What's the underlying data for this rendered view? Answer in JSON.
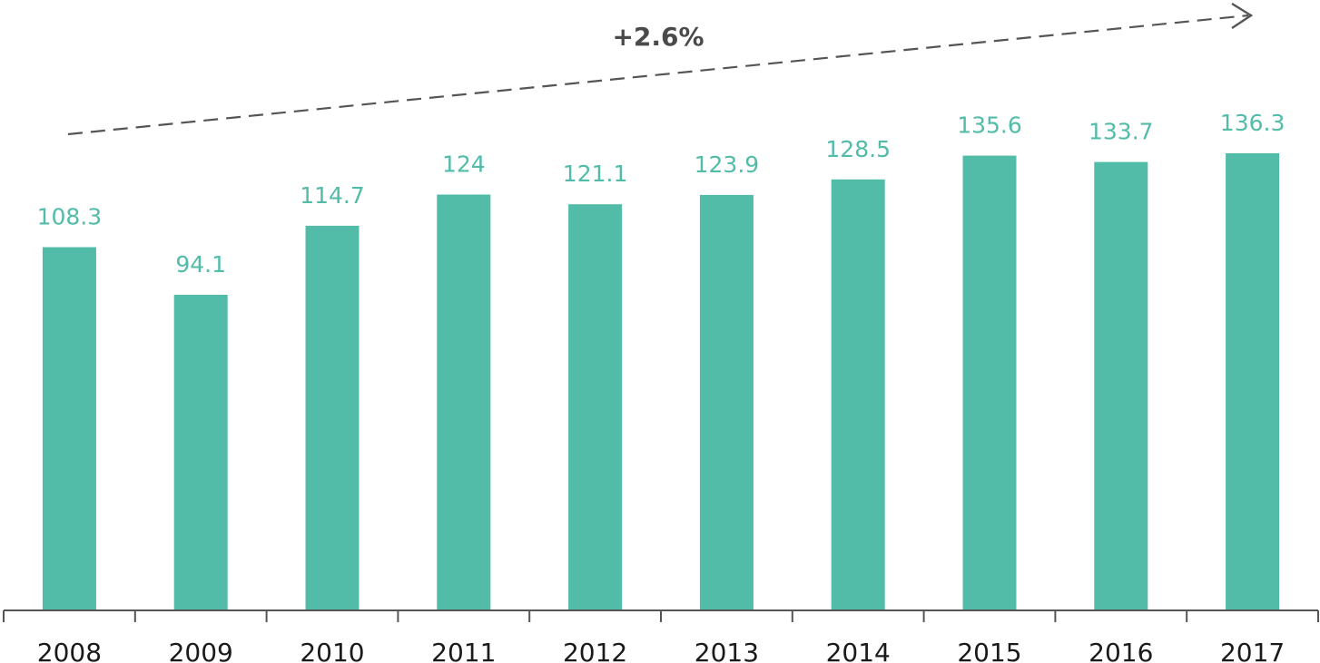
{
  "colors": {
    "bar": "#52bca8",
    "value_label": "#52bca8",
    "axis": "#555555",
    "trend": "#555555",
    "tick_label": "#1a1a1a"
  },
  "trend": {
    "label": "+2.6%",
    "style": "dashed-arrow"
  },
  "chart_data": {
    "type": "bar",
    "title": "",
    "xlabel": "",
    "ylabel": "",
    "categories": [
      "2008",
      "2009",
      "2010",
      "2011",
      "2012",
      "2013",
      "2014",
      "2015",
      "2016",
      "2017"
    ],
    "values": [
      108.3,
      94.1,
      114.7,
      124,
      121.1,
      123.9,
      128.5,
      135.6,
      133.7,
      136.3
    ],
    "value_labels": [
      "108.3",
      "94.1",
      "114.7",
      "124",
      "121.1",
      "123.9",
      "128.5",
      "135.6",
      "133.7",
      "136.3"
    ],
    "ylim": [
      0,
      136.3
    ],
    "grid": false,
    "legend": "none"
  }
}
